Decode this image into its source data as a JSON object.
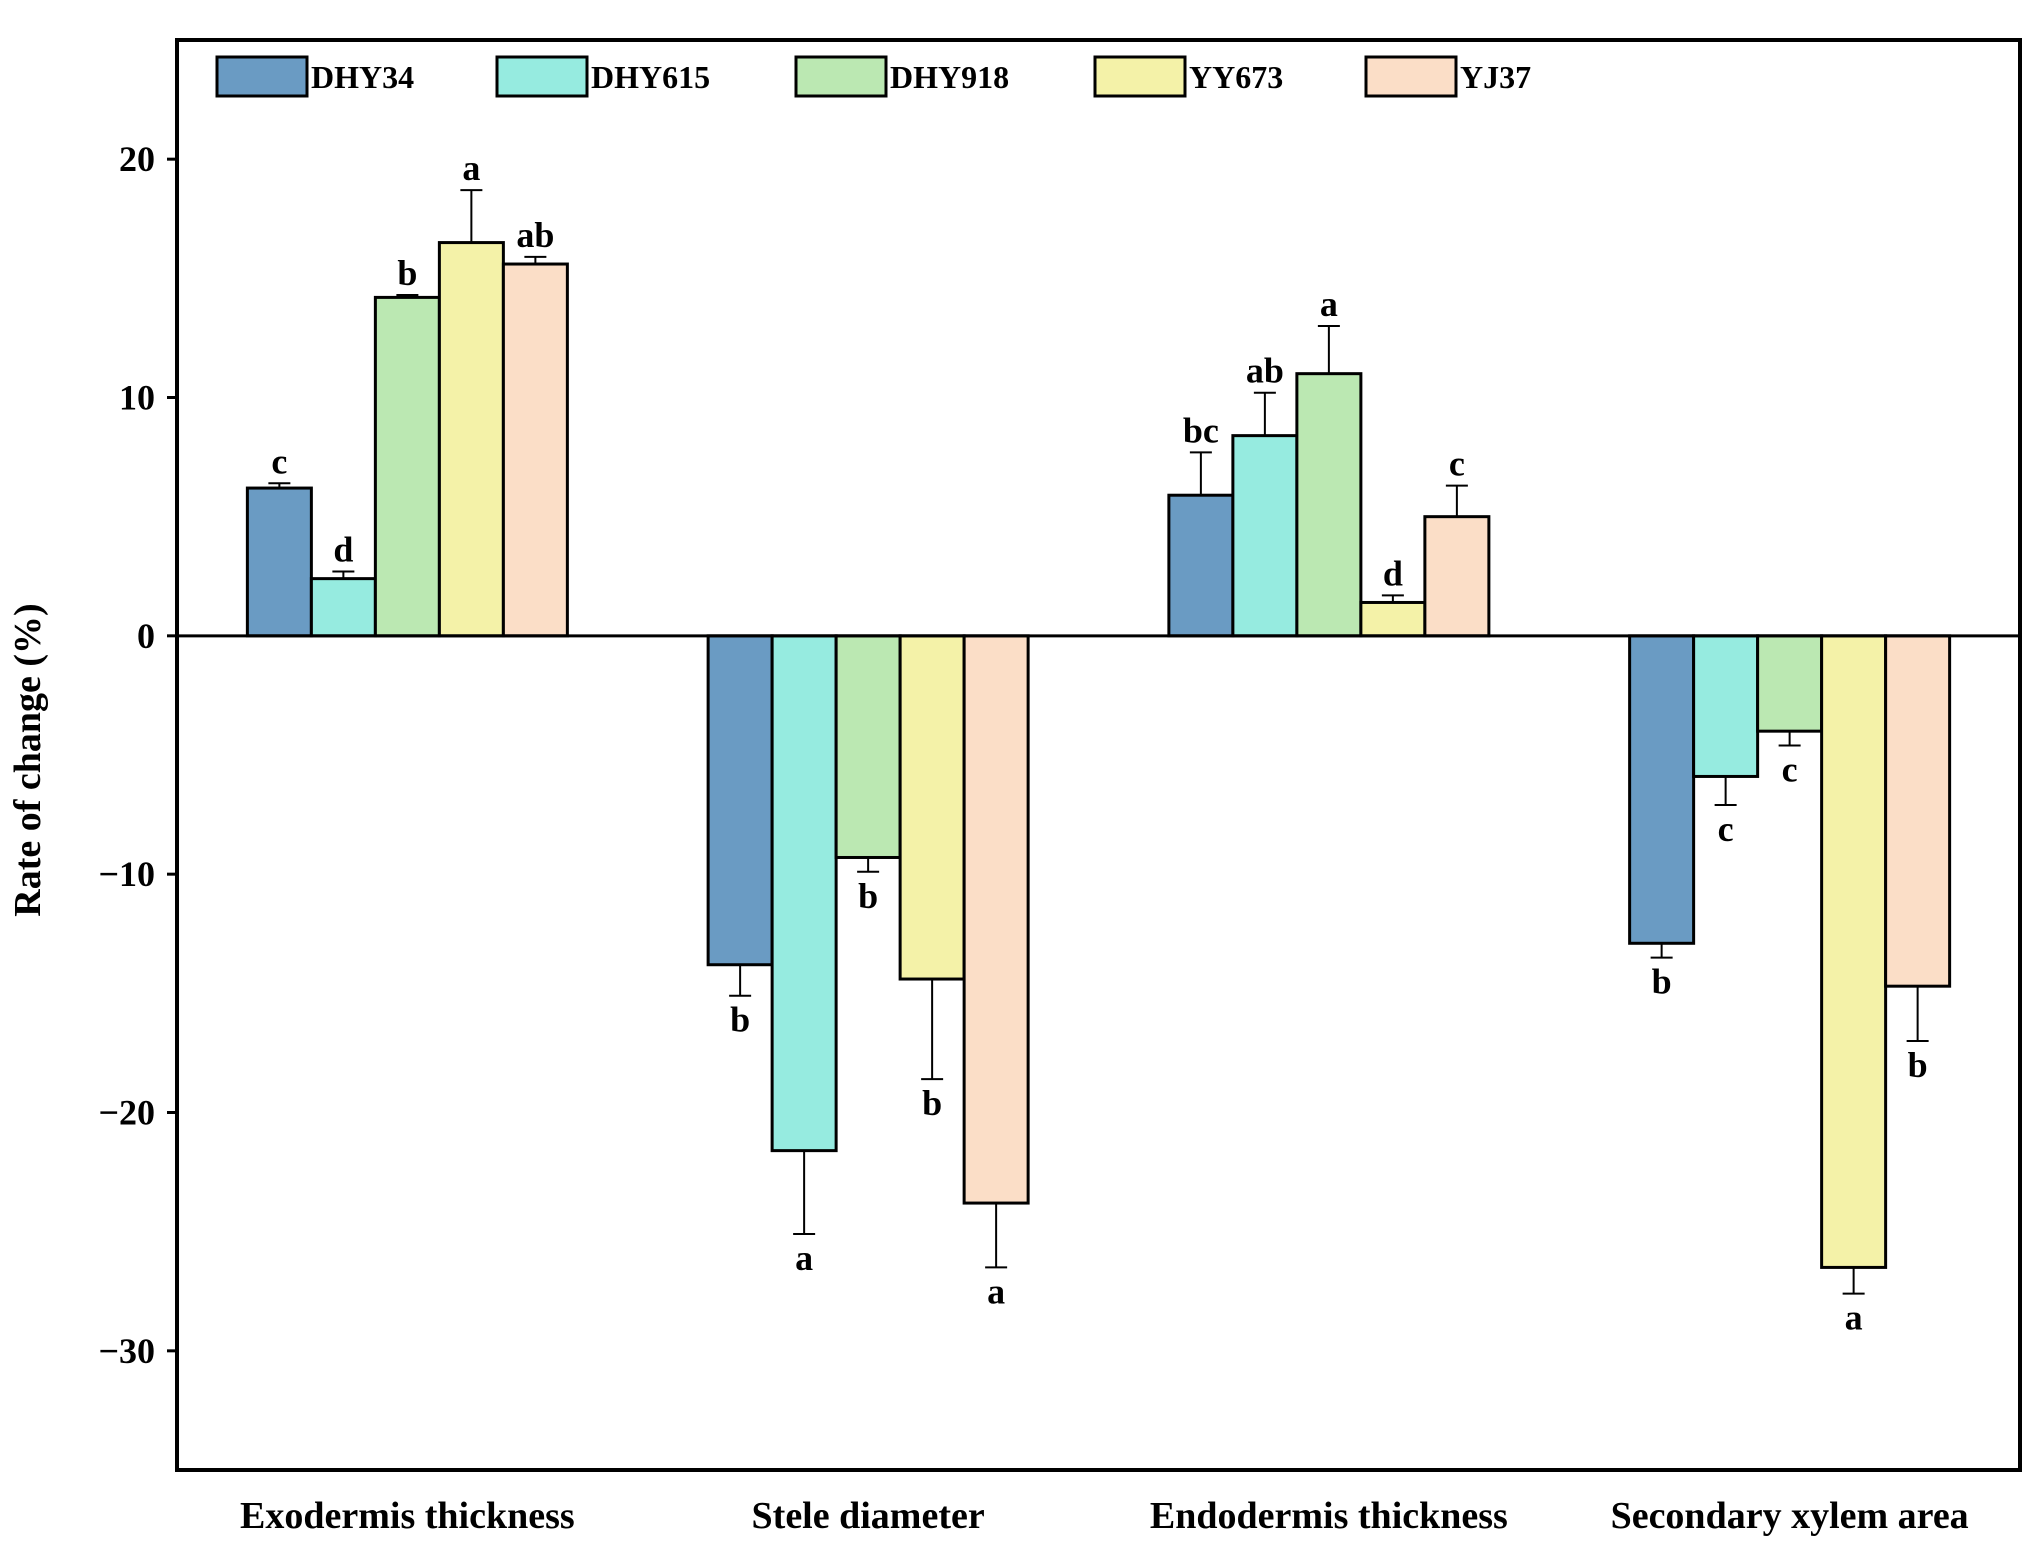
{
  "chart_data": {
    "type": "bar",
    "title": "",
    "xlabel": "",
    "ylabel": "Rate of change (%)",
    "ylim": [
      -35,
      25
    ],
    "yticks": [
      20,
      10,
      0,
      -10,
      -20,
      -30
    ],
    "ytick_labels": [
      "20",
      "10",
      "0",
      "−10",
      "−20",
      "−30"
    ],
    "grid": false,
    "legend_position": "top",
    "categories": [
      "Exodermis thickness",
      "Stele diameter",
      "Endodermis thickness",
      "Secondary xylem area"
    ],
    "series": [
      {
        "name": "DHY34",
        "color": "#6a9bc3",
        "values": [
          6.2,
          -13.8,
          5.9,
          -12.9
        ],
        "errors": [
          0.2,
          1.3,
          1.8,
          0.6
        ],
        "letters": [
          "c",
          "b",
          "bc",
          "b"
        ]
      },
      {
        "name": "DHY615",
        "color": "#96ebe0",
        "values": [
          2.4,
          -21.6,
          8.4,
          -5.9
        ],
        "errors": [
          0.3,
          3.5,
          1.8,
          1.2
        ],
        "letters": [
          "d",
          "a",
          "ab",
          "c"
        ]
      },
      {
        "name": "DHY918",
        "color": "#bbe8b2",
        "values": [
          14.2,
          -9.3,
          11.0,
          -4.0
        ],
        "errors": [
          0.1,
          0.6,
          2.0,
          0.6
        ],
        "letters": [
          "b",
          "b",
          "a",
          "c"
        ]
      },
      {
        "name": "YY673",
        "color": "#f4f2a8",
        "values": [
          16.5,
          -14.4,
          1.4,
          -26.5
        ],
        "errors": [
          2.2,
          4.2,
          0.3,
          1.1
        ],
        "letters": [
          "a",
          "b",
          "d",
          "a"
        ]
      },
      {
        "name": "YJ37",
        "color": "#fbdec7",
        "values": [
          15.6,
          -23.8,
          5.0,
          -14.7
        ],
        "errors": [
          0.3,
          2.7,
          1.3,
          2.3
        ],
        "letters": [
          "ab",
          "a",
          "c",
          "b"
        ]
      }
    ]
  }
}
